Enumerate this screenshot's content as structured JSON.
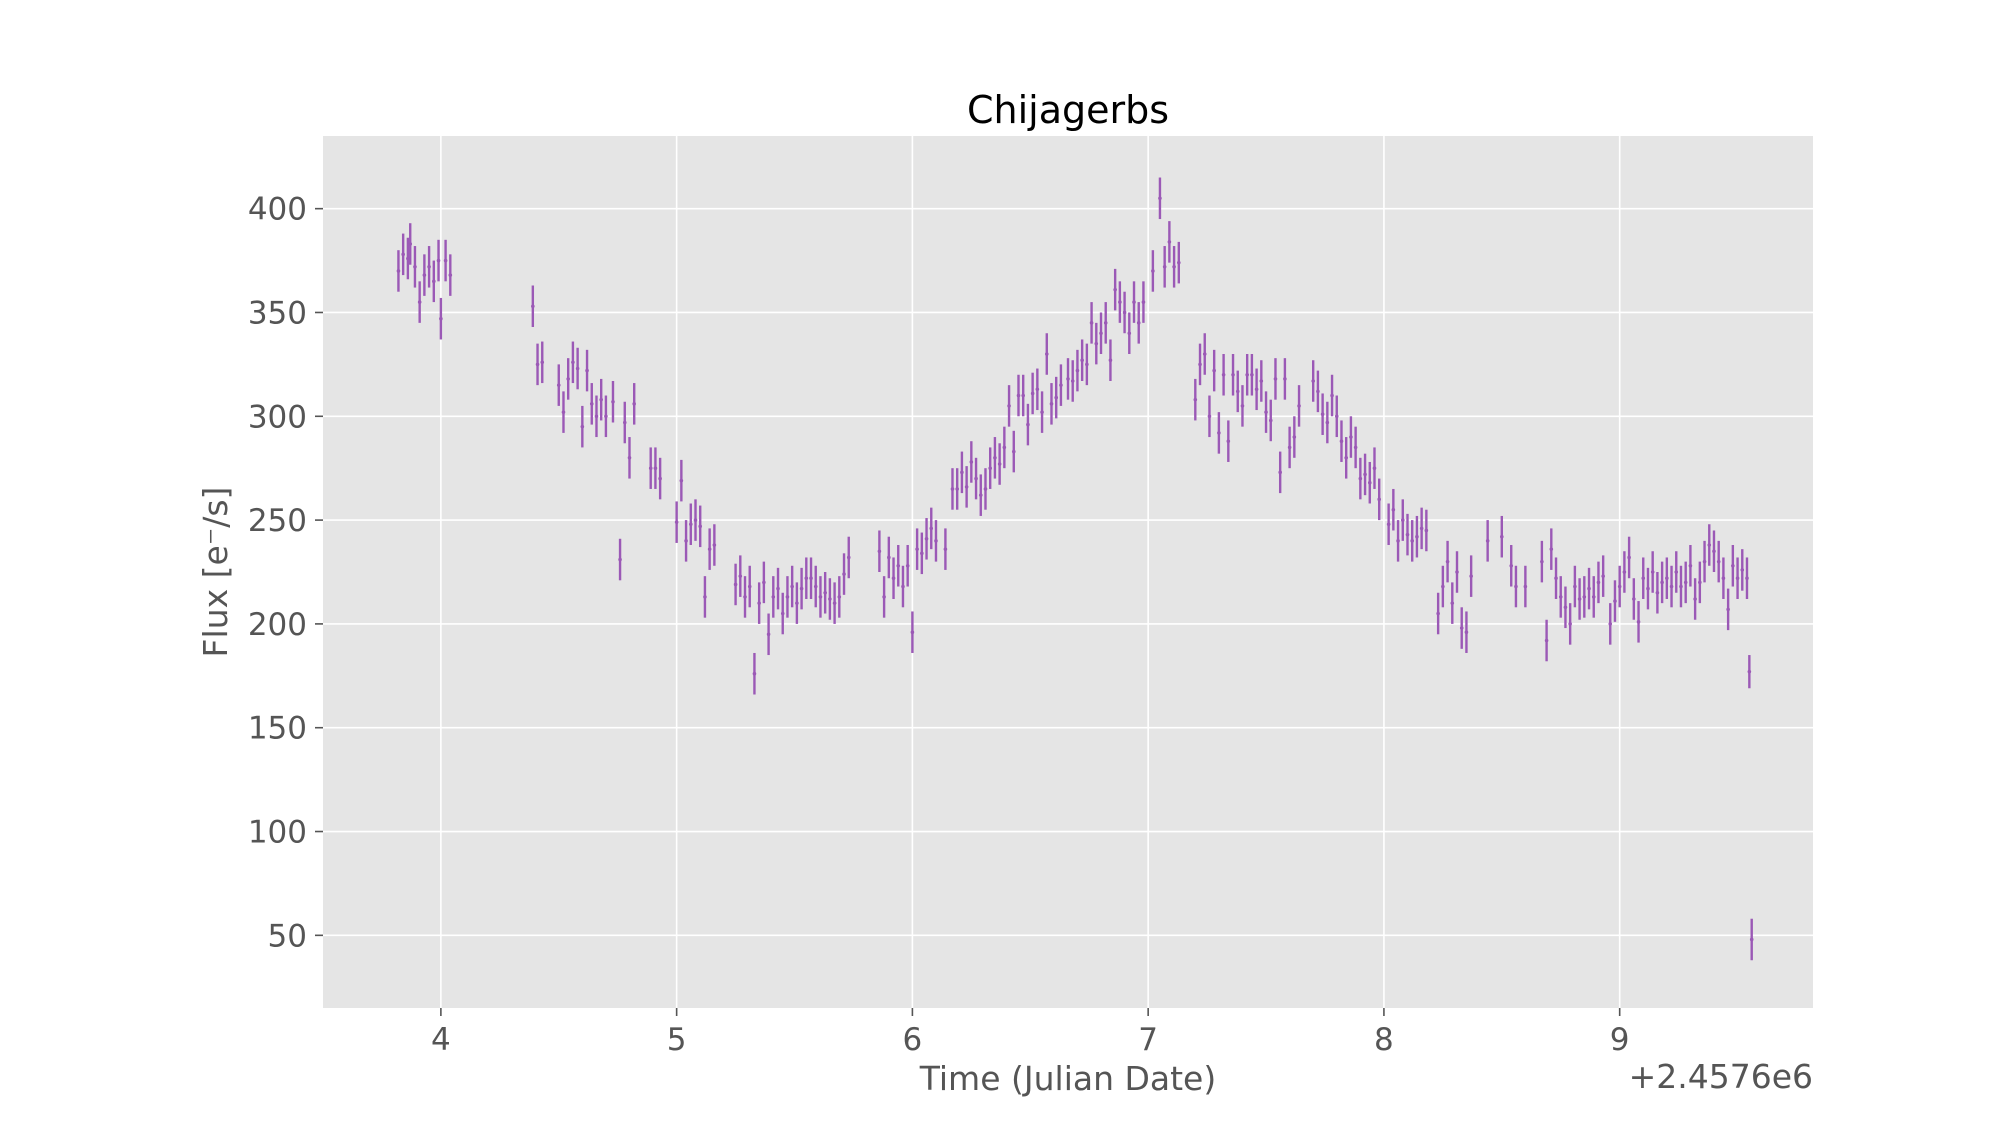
{
  "chart_data": {
    "type": "scatter",
    "title": "Chijagerbs",
    "xlabel": "Time (Julian Date)",
    "ylabel": "Flux [e⁻/s]",
    "x_offset_label": "+2.4576e6",
    "xlim": [
      3.5,
      9.82
    ],
    "ylim": [
      15,
      435
    ],
    "xticks": [
      4,
      5,
      6,
      7,
      8,
      9
    ],
    "yticks": [
      50,
      100,
      150,
      200,
      250,
      300,
      350,
      400
    ],
    "grid": true,
    "legend": "none",
    "marker_color": "#9b59b6",
    "background_color": "#e5e5e5",
    "series": [
      {
        "points": [
          [
            3.82,
            370,
            10
          ],
          [
            3.84,
            378,
            10
          ],
          [
            3.86,
            376,
            10
          ],
          [
            3.87,
            383,
            10
          ],
          [
            3.89,
            372,
            10
          ],
          [
            3.91,
            355,
            10
          ],
          [
            3.93,
            368,
            10
          ],
          [
            3.95,
            372,
            10
          ],
          [
            3.97,
            365,
            10
          ],
          [
            3.99,
            375,
            10
          ],
          [
            4.0,
            347,
            10
          ],
          [
            4.02,
            375,
            10
          ],
          [
            4.04,
            368,
            10
          ],
          [
            4.39,
            353,
            10
          ],
          [
            4.41,
            325,
            10
          ],
          [
            4.43,
            326,
            10
          ],
          [
            4.5,
            315,
            10
          ],
          [
            4.52,
            302,
            10
          ],
          [
            4.54,
            318,
            10
          ],
          [
            4.56,
            326,
            10
          ],
          [
            4.58,
            323,
            10
          ],
          [
            4.6,
            295,
            10
          ],
          [
            4.62,
            322,
            10
          ],
          [
            4.64,
            306,
            10
          ],
          [
            4.66,
            300,
            10
          ],
          [
            4.68,
            308,
            10
          ],
          [
            4.7,
            300,
            10
          ],
          [
            4.73,
            307,
            10
          ],
          [
            4.76,
            231,
            10
          ],
          [
            4.78,
            297,
            10
          ],
          [
            4.8,
            280,
            10
          ],
          [
            4.82,
            306,
            10
          ],
          [
            4.89,
            275,
            10
          ],
          [
            4.91,
            275,
            10
          ],
          [
            4.93,
            270,
            10
          ],
          [
            5.0,
            249,
            10
          ],
          [
            5.02,
            269,
            10
          ],
          [
            5.04,
            240,
            10
          ],
          [
            5.06,
            248,
            10
          ],
          [
            5.08,
            250,
            10
          ],
          [
            5.1,
            247,
            10
          ],
          [
            5.12,
            213,
            10
          ],
          [
            5.14,
            236,
            10
          ],
          [
            5.16,
            238,
            10
          ],
          [
            5.25,
            219,
            10
          ],
          [
            5.27,
            223,
            10
          ],
          [
            5.29,
            213,
            10
          ],
          [
            5.31,
            218,
            10
          ],
          [
            5.33,
            176,
            10
          ],
          [
            5.35,
            210,
            10
          ],
          [
            5.37,
            220,
            10
          ],
          [
            5.39,
            195,
            10
          ],
          [
            5.41,
            213,
            10
          ],
          [
            5.43,
            217,
            10
          ],
          [
            5.45,
            205,
            10
          ],
          [
            5.47,
            213,
            10
          ],
          [
            5.49,
            218,
            10
          ],
          [
            5.51,
            210,
            10
          ],
          [
            5.53,
            217,
            10
          ],
          [
            5.55,
            222,
            10
          ],
          [
            5.57,
            222,
            10
          ],
          [
            5.59,
            218,
            10
          ],
          [
            5.61,
            213,
            10
          ],
          [
            5.63,
            215,
            10
          ],
          [
            5.65,
            212,
            10
          ],
          [
            5.67,
            210,
            10
          ],
          [
            5.69,
            213,
            10
          ],
          [
            5.71,
            224,
            10
          ],
          [
            5.73,
            232,
            10
          ],
          [
            5.86,
            235,
            10
          ],
          [
            5.88,
            213,
            10
          ],
          [
            5.9,
            232,
            10
          ],
          [
            5.92,
            222,
            10
          ],
          [
            5.94,
            228,
            10
          ],
          [
            5.96,
            218,
            10
          ],
          [
            5.98,
            228,
            10
          ],
          [
            6.0,
            196,
            10
          ],
          [
            6.02,
            236,
            10
          ],
          [
            6.04,
            234,
            10
          ],
          [
            6.06,
            241,
            10
          ],
          [
            6.08,
            246,
            10
          ],
          [
            6.1,
            240,
            10
          ],
          [
            6.14,
            236,
            10
          ],
          [
            6.17,
            265,
            10
          ],
          [
            6.19,
            265,
            10
          ],
          [
            6.21,
            273,
            10
          ],
          [
            6.23,
            266,
            10
          ],
          [
            6.25,
            278,
            10
          ],
          [
            6.27,
            270,
            10
          ],
          [
            6.29,
            262,
            10
          ],
          [
            6.31,
            265,
            10
          ],
          [
            6.33,
            275,
            10
          ],
          [
            6.35,
            280,
            10
          ],
          [
            6.37,
            277,
            10
          ],
          [
            6.39,
            285,
            10
          ],
          [
            6.41,
            305,
            10
          ],
          [
            6.43,
            283,
            10
          ],
          [
            6.45,
            310,
            10
          ],
          [
            6.47,
            310,
            10
          ],
          [
            6.49,
            296,
            10
          ],
          [
            6.51,
            311,
            10
          ],
          [
            6.53,
            313,
            10
          ],
          [
            6.55,
            302,
            10
          ],
          [
            6.57,
            330,
            10
          ],
          [
            6.59,
            306,
            10
          ],
          [
            6.61,
            309,
            10
          ],
          [
            6.63,
            315,
            10
          ],
          [
            6.66,
            318,
            10
          ],
          [
            6.68,
            317,
            10
          ],
          [
            6.7,
            322,
            10
          ],
          [
            6.72,
            327,
            10
          ],
          [
            6.74,
            325,
            10
          ],
          [
            6.76,
            345,
            10
          ],
          [
            6.78,
            335,
            10
          ],
          [
            6.8,
            340,
            10
          ],
          [
            6.82,
            345,
            10
          ],
          [
            6.84,
            327,
            10
          ],
          [
            6.86,
            361,
            10
          ],
          [
            6.88,
            355,
            10
          ],
          [
            6.9,
            350,
            10
          ],
          [
            6.92,
            340,
            10
          ],
          [
            6.94,
            355,
            10
          ],
          [
            6.96,
            345,
            10
          ],
          [
            6.98,
            355,
            10
          ],
          [
            7.02,
            370,
            10
          ],
          [
            7.05,
            405,
            10
          ],
          [
            7.07,
            372,
            10
          ],
          [
            7.09,
            384,
            10
          ],
          [
            7.11,
            372,
            10
          ],
          [
            7.13,
            374,
            10
          ],
          [
            7.2,
            308,
            10
          ],
          [
            7.22,
            325,
            10
          ],
          [
            7.24,
            330,
            10
          ],
          [
            7.26,
            300,
            10
          ],
          [
            7.28,
            322,
            10
          ],
          [
            7.3,
            292,
            10
          ],
          [
            7.32,
            320,
            10
          ],
          [
            7.34,
            288,
            10
          ],
          [
            7.36,
            320,
            10
          ],
          [
            7.38,
            312,
            10
          ],
          [
            7.4,
            305,
            10
          ],
          [
            7.42,
            320,
            10
          ],
          [
            7.44,
            320,
            10
          ],
          [
            7.46,
            313,
            10
          ],
          [
            7.48,
            317,
            10
          ],
          [
            7.5,
            302,
            10
          ],
          [
            7.52,
            298,
            10
          ],
          [
            7.54,
            318,
            10
          ],
          [
            7.56,
            273,
            10
          ],
          [
            7.58,
            318,
            10
          ],
          [
            7.6,
            285,
            10
          ],
          [
            7.62,
            290,
            10
          ],
          [
            7.64,
            305,
            10
          ],
          [
            7.7,
            317,
            10
          ],
          [
            7.72,
            312,
            10
          ],
          [
            7.74,
            301,
            10
          ],
          [
            7.76,
            297,
            10
          ],
          [
            7.78,
            310,
            10
          ],
          [
            7.8,
            300,
            10
          ],
          [
            7.82,
            288,
            10
          ],
          [
            7.84,
            280,
            10
          ],
          [
            7.86,
            290,
            10
          ],
          [
            7.88,
            285,
            10
          ],
          [
            7.9,
            270,
            10
          ],
          [
            7.92,
            272,
            10
          ],
          [
            7.94,
            268,
            10
          ],
          [
            7.96,
            275,
            10
          ],
          [
            7.98,
            260,
            10
          ],
          [
            8.02,
            248,
            10
          ],
          [
            8.04,
            255,
            10
          ],
          [
            8.06,
            240,
            10
          ],
          [
            8.08,
            250,
            10
          ],
          [
            8.1,
            243,
            10
          ],
          [
            8.12,
            240,
            10
          ],
          [
            8.14,
            242,
            10
          ],
          [
            8.16,
            246,
            10
          ],
          [
            8.18,
            245,
            10
          ],
          [
            8.23,
            205,
            10
          ],
          [
            8.25,
            218,
            10
          ],
          [
            8.27,
            230,
            10
          ],
          [
            8.29,
            210,
            10
          ],
          [
            8.31,
            225,
            10
          ],
          [
            8.33,
            198,
            10
          ],
          [
            8.35,
            196,
            10
          ],
          [
            8.37,
            223,
            10
          ],
          [
            8.44,
            240,
            10
          ],
          [
            8.5,
            242,
            10
          ],
          [
            8.54,
            228,
            10
          ],
          [
            8.56,
            218,
            10
          ],
          [
            8.6,
            218,
            10
          ],
          [
            8.67,
            230,
            10
          ],
          [
            8.69,
            192,
            10
          ],
          [
            8.71,
            236,
            10
          ],
          [
            8.73,
            222,
            10
          ],
          [
            8.75,
            213,
            10
          ],
          [
            8.77,
            208,
            10
          ],
          [
            8.79,
            200,
            10
          ],
          [
            8.81,
            218,
            10
          ],
          [
            8.83,
            212,
            10
          ],
          [
            8.85,
            213,
            10
          ],
          [
            8.87,
            217,
            10
          ],
          [
            8.89,
            213,
            10
          ],
          [
            8.91,
            220,
            10
          ],
          [
            8.93,
            223,
            10
          ],
          [
            8.96,
            200,
            10
          ],
          [
            8.98,
            211,
            10
          ],
          [
            9.0,
            218,
            10
          ],
          [
            9.02,
            225,
            10
          ],
          [
            9.04,
            232,
            10
          ],
          [
            9.06,
            212,
            10
          ],
          [
            9.08,
            201,
            10
          ],
          [
            9.1,
            222,
            10
          ],
          [
            9.12,
            217,
            10
          ],
          [
            9.14,
            225,
            10
          ],
          [
            9.16,
            215,
            10
          ],
          [
            9.18,
            220,
            10
          ],
          [
            9.2,
            222,
            10
          ],
          [
            9.22,
            218,
            10
          ],
          [
            9.24,
            225,
            10
          ],
          [
            9.26,
            218,
            10
          ],
          [
            9.28,
            220,
            10
          ],
          [
            9.3,
            228,
            10
          ],
          [
            9.32,
            212,
            10
          ],
          [
            9.34,
            220,
            10
          ],
          [
            9.36,
            230,
            10
          ],
          [
            9.38,
            238,
            10
          ],
          [
            9.4,
            235,
            10
          ],
          [
            9.42,
            230,
            10
          ],
          [
            9.44,
            222,
            10
          ],
          [
            9.46,
            207,
            10
          ],
          [
            9.48,
            228,
            10
          ],
          [
            9.5,
            222,
            10
          ],
          [
            9.52,
            226,
            10
          ],
          [
            9.54,
            222,
            10
          ],
          [
            9.55,
            177,
            8
          ],
          [
            9.56,
            48,
            10
          ]
        ]
      }
    ]
  }
}
